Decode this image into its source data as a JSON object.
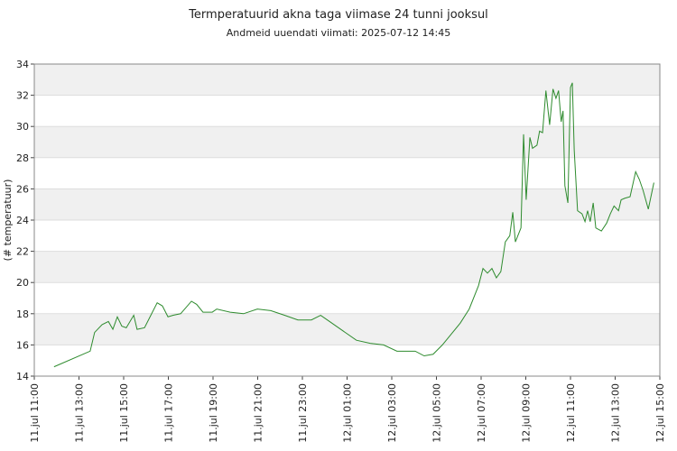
{
  "chart_data": {
    "type": "line",
    "title": "Termperatuurid akna taga viimase 24 tunni jooksul",
    "subtitle": "Andmeid uuendati viimati: 2025-07-12 14:45",
    "y_label": "(# temperatuur)",
    "ylim": [
      14,
      34
    ],
    "yticks": [
      14,
      16,
      18,
      20,
      22,
      24,
      26,
      28,
      30,
      32,
      34
    ],
    "xlim": [
      "11.jul 11:00",
      "12.jul 15:00"
    ],
    "xticks": [
      "11.jul 11:00",
      "11.jul 13:00",
      "11.jul 15:00",
      "11.jul 17:00",
      "11.jul 19:00",
      "11.jul 21:00",
      "11.jul 23:00",
      "12.jul 01:00",
      "12.jul 03:00",
      "12.jul 05:00",
      "12.jul 07:00",
      "12.jul 09:00",
      "12.jul 11:00",
      "12.jul 13:00",
      "12.jul 15:00"
    ],
    "grid": true,
    "band_color": "#f0f0f0",
    "x": [
      "11.jul 11:53",
      "11.jul 13:30",
      "11.jul 13:42",
      "11.jul 14:02",
      "11.jul 14:19",
      "11.jul 14:31",
      "11.jul 14:43",
      "11.jul 14:55",
      "11.jul 15:07",
      "11.jul 15:27",
      "11.jul 15:36",
      "11.jul 15:56",
      "11.jul 16:13",
      "11.jul 16:30",
      "11.jul 16:44",
      "11.jul 16:59",
      "11.jul 17:13",
      "11.jul 17:33",
      "11.jul 18:02",
      "11.jul 18:16",
      "11.jul 18:33",
      "11.jul 18:58",
      "11.jul 19:10",
      "11.jul 19:46",
      "11.jul 20:22",
      "11.jul 20:59",
      "11.jul 21:35",
      "11.jul 22:12",
      "11.jul 22:48",
      "11.jul 23:24",
      "11.jul 23:49",
      "12.jul 00:13",
      "12.jul 00:49",
      "12.jul 01:25",
      "12.jul 02:02",
      "12.jul 02:38",
      "12.jul 03:14",
      "12.jul 04:03",
      "12.jul 04:27",
      "12.jul 04:51",
      "12.jul 05:16",
      "12.jul 05:40",
      "12.jul 06:04",
      "12.jul 06:28",
      "12.jul 06:53",
      "12.jul 07:05",
      "12.jul 07:17",
      "12.jul 07:29",
      "12.jul 07:41",
      "12.jul 07:53",
      "12.jul 08:05",
      "12.jul 08:17",
      "12.jul 08:25",
      "12.jul 08:32",
      "12.jul 08:47",
      "12.jul 08:54",
      "12.jul 09:01",
      "12.jul 09:11",
      "12.jul 09:18",
      "12.jul 09:30",
      "12.jul 09:37",
      "12.jul 09:45",
      "12.jul 09:54",
      "12.jul 10:04",
      "12.jul 10:13",
      "12.jul 10:21",
      "12.jul 10:28",
      "12.jul 10:35",
      "12.jul 10:40",
      "12.jul 10:45",
      "12.jul 10:53",
      "12.jul 11:00",
      "12.jul 11:05",
      "12.jul 11:10",
      "12.jul 11:19",
      "12.jul 11:31",
      "12.jul 11:39",
      "12.jul 11:46",
      "12.jul 11:53",
      "12.jul 12:01",
      "12.jul 12:08",
      "12.jul 12:23",
      "12.jul 12:37",
      "12.jul 12:47",
      "12.jul 12:57",
      "12.jul 13:09",
      "12.jul 13:16",
      "12.jul 13:26",
      "12.jul 13:40",
      "12.jul 13:55",
      "12.jul 14:05",
      "12.jul 14:15",
      "12.jul 14:29",
      "12.jul 14:44"
    ],
    "series": [
      {
        "color": "#2e8b2e",
        "values": [
          14.6,
          15.6,
          16.8,
          17.3,
          17.5,
          17.0,
          17.8,
          17.2,
          17.1,
          17.9,
          17.0,
          17.1,
          17.9,
          18.7,
          18.5,
          17.8,
          17.9,
          18.0,
          18.8,
          18.6,
          18.1,
          18.1,
          18.3,
          18.1,
          18.0,
          18.3,
          18.2,
          17.9,
          17.6,
          17.6,
          17.9,
          17.5,
          16.9,
          16.3,
          16.1,
          16.0,
          15.6,
          15.6,
          15.3,
          15.4,
          16.0,
          16.7,
          17.4,
          18.3,
          19.8,
          20.9,
          20.6,
          20.9,
          20.3,
          20.7,
          22.6,
          23.0,
          24.5,
          22.6,
          23.5,
          29.5,
          25.3,
          29.3,
          28.6,
          28.8,
          29.7,
          29.6,
          32.3,
          30.1,
          32.4,
          31.8,
          32.3,
          30.3,
          31.0,
          26.2,
          25.1,
          32.5,
          32.8,
          28.5,
          24.6,
          24.4,
          23.9,
          24.6,
          23.9,
          25.1,
          23.5,
          23.3,
          23.8,
          24.4,
          24.9,
          24.6,
          25.3,
          25.4,
          25.5,
          27.1,
          26.6,
          25.9,
          24.7,
          26.4
        ]
      }
    ]
  }
}
